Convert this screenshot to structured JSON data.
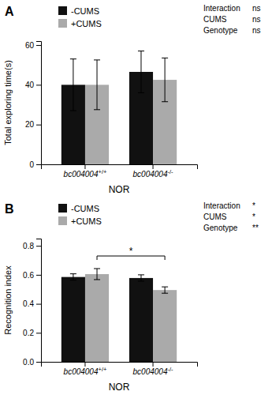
{
  "chart_data": [
    {
      "type": "bar",
      "title": "A",
      "categories": [
        "bc004004+/+",
        "bc004004-/-"
      ],
      "series": [
        {
          "name": "-CUMS",
          "color": "#111111",
          "values": [
            40.0,
            46.5
          ],
          "errors": [
            13.0,
            10.5
          ]
        },
        {
          "name": "+CUMS",
          "color": "#aaaaaa",
          "values": [
            40.0,
            42.5
          ],
          "errors": [
            12.5,
            11.0
          ]
        }
      ],
      "xlabel": "NOR",
      "ylabel": "Total exploring time(s)",
      "ylim": [
        0,
        62
      ],
      "yticks": [
        0,
        20,
        40,
        60
      ],
      "grid": false,
      "legend": "upper left",
      "annotations": [
        {
          "type": "stat",
          "label": "Interaction",
          "text": "ns"
        },
        {
          "type": "stat",
          "label": "CUMS",
          "text": "ns"
        },
        {
          "type": "stat",
          "label": "Genotype",
          "text": "ns"
        }
      ]
    },
    {
      "type": "bar",
      "title": "B",
      "categories": [
        "bc004004+/+",
        "bc004004-/-"
      ],
      "series": [
        {
          "name": "-CUMS",
          "color": "#111111",
          "values": [
            0.585,
            0.578
          ],
          "errors": [
            0.022,
            0.022
          ]
        },
        {
          "name": "+CUMS",
          "color": "#aaaaaa",
          "values": [
            0.605,
            0.495
          ],
          "errors": [
            0.038,
            0.022
          ]
        }
      ],
      "xlabel": "NOR",
      "ylabel": "Recognition index",
      "ylim": [
        0,
        0.85
      ],
      "yticks": [
        {
          "value": 0.0,
          "label": "0.0"
        },
        0.2,
        0.4,
        0.6,
        0.8
      ],
      "grid": false,
      "legend": "upper left",
      "annotations": [
        {
          "type": "stat",
          "label": "Interaction",
          "text": "*"
        },
        {
          "type": "stat",
          "label": "CUMS",
          "text": "*"
        },
        {
          "type": "stat",
          "label": "Genotype",
          "text": "**"
        },
        {
          "type": "bracket",
          "text": "*",
          "y": 0.73,
          "series": 1,
          "from": 0,
          "to": 1
        }
      ]
    }
  ]
}
